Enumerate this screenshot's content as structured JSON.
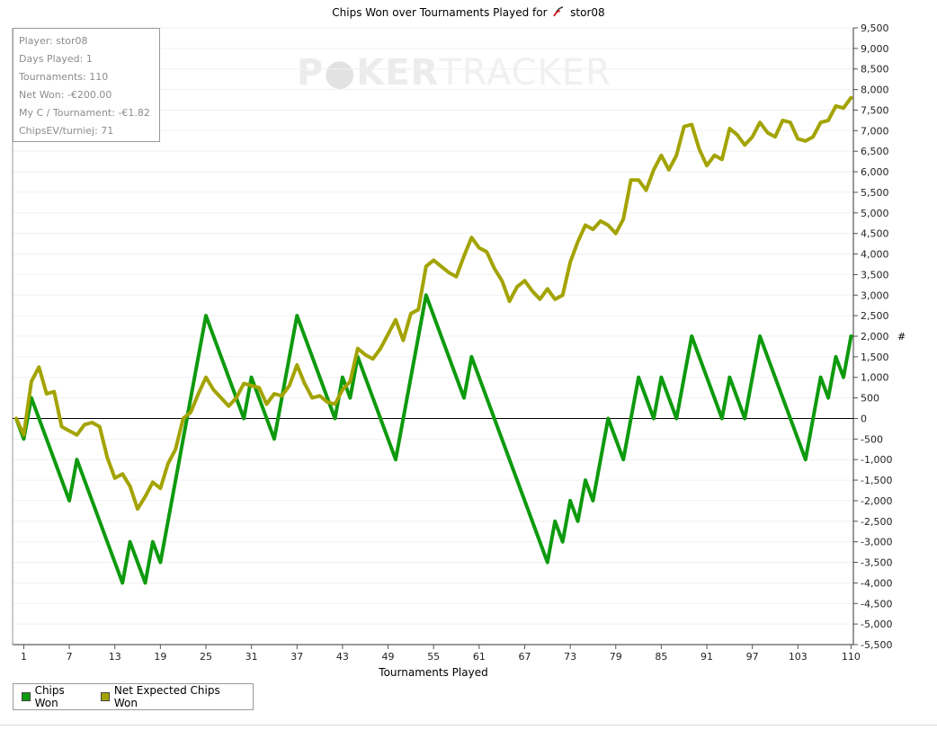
{
  "title": {
    "text": "Chips Won over Tournaments Played for",
    "player": "stor08",
    "logo_icon": "cherry-icon"
  },
  "stats": [
    "Player: stor08",
    "Days Played: 1",
    "Tournaments: 110",
    "Net Won: -€200.00",
    "My C / Tournament: -€1.82",
    "ChipsEV/turniej: 71"
  ],
  "watermark": {
    "part1": "P",
    "part2": "KER",
    "part3": "TRACKER"
  },
  "legend": [
    {
      "label": "Chips Won",
      "color": "#0e9a0e"
    },
    {
      "label": "Net Expected Chips Won",
      "color": "#a3a300"
    }
  ],
  "chart_data": {
    "type": "line",
    "title": "Chips Won over Tournaments Played for stor08",
    "xlabel": "Tournaments Played",
    "ylabel": "#",
    "xlim": [
      0,
      110
    ],
    "ylim": [
      -5500,
      9500
    ],
    "x_ticks": [
      1,
      7,
      13,
      19,
      25,
      31,
      37,
      43,
      49,
      55,
      61,
      67,
      73,
      79,
      85,
      91,
      97,
      103,
      110
    ],
    "y_ticks": [
      -5500,
      -5000,
      -4500,
      -4000,
      -3500,
      -3000,
      -2500,
      -2000,
      -1500,
      -1000,
      -500,
      0,
      500,
      1000,
      1500,
      2000,
      2500,
      3000,
      3500,
      4000,
      4500,
      5000,
      5500,
      6000,
      6500,
      7000,
      7500,
      8000,
      8500,
      9000,
      9500
    ],
    "grid": "horizontal",
    "legend_position": "bottom-left",
    "series": [
      {
        "name": "Chips Won",
        "color": "#0e9a0e",
        "points": [
          [
            0,
            0
          ],
          [
            1,
            -500
          ],
          [
            2,
            500
          ],
          [
            7,
            -2000
          ],
          [
            8,
            -1000
          ],
          [
            14,
            -4000
          ],
          [
            15,
            -3000
          ],
          [
            17,
            -4000
          ],
          [
            18,
            -3000
          ],
          [
            19,
            -3500
          ],
          [
            25,
            2500
          ],
          [
            30,
            0
          ],
          [
            31,
            1000
          ],
          [
            34,
            -500
          ],
          [
            37,
            2500
          ],
          [
            42,
            0
          ],
          [
            43,
            1000
          ],
          [
            44,
            500
          ],
          [
            45,
            1500
          ],
          [
            50,
            -1000
          ],
          [
            54,
            3000
          ],
          [
            59,
            500
          ],
          [
            60,
            1500
          ],
          [
            70,
            -3500
          ],
          [
            71,
            -2500
          ],
          [
            72,
            -3000
          ],
          [
            73,
            -2000
          ],
          [
            74,
            -2500
          ],
          [
            75,
            -1500
          ],
          [
            76,
            -2000
          ],
          [
            78,
            0
          ],
          [
            80,
            -1000
          ],
          [
            82,
            1000
          ],
          [
            84,
            0
          ],
          [
            85,
            1000
          ],
          [
            87,
            0
          ],
          [
            89,
            2000
          ],
          [
            93,
            0
          ],
          [
            94,
            1000
          ],
          [
            96,
            0
          ],
          [
            98,
            2000
          ],
          [
            104,
            -1000
          ],
          [
            106,
            1000
          ],
          [
            107,
            500
          ],
          [
            108,
            1500
          ],
          [
            109,
            1000
          ],
          [
            110,
            2000
          ]
        ]
      },
      {
        "name": "Net Expected Chips Won",
        "color": "#a3a300",
        "points": [
          [
            0,
            0
          ],
          [
            1,
            -400
          ],
          [
            2,
            900
          ],
          [
            3,
            1250
          ],
          [
            4,
            600
          ],
          [
            5,
            650
          ],
          [
            6,
            -200
          ],
          [
            7,
            -300
          ],
          [
            8,
            -400
          ],
          [
            9,
            -150
          ],
          [
            10,
            -100
          ],
          [
            11,
            -200
          ],
          [
            12,
            -950
          ],
          [
            13,
            -1450
          ],
          [
            14,
            -1350
          ],
          [
            15,
            -1650
          ],
          [
            16,
            -2200
          ],
          [
            17,
            -1900
          ],
          [
            18,
            -1550
          ],
          [
            19,
            -1700
          ],
          [
            20,
            -1100
          ],
          [
            21,
            -750
          ],
          [
            22,
            0
          ],
          [
            23,
            150
          ],
          [
            24,
            600
          ],
          [
            25,
            1000
          ],
          [
            26,
            700
          ],
          [
            27,
            500
          ],
          [
            28,
            300
          ],
          [
            29,
            500
          ],
          [
            30,
            850
          ],
          [
            31,
            800
          ],
          [
            32,
            750
          ],
          [
            33,
            350
          ],
          [
            34,
            600
          ],
          [
            35,
            550
          ],
          [
            36,
            800
          ],
          [
            37,
            1300
          ],
          [
            38,
            850
          ],
          [
            39,
            500
          ],
          [
            40,
            550
          ],
          [
            41,
            400
          ],
          [
            42,
            350
          ],
          [
            43,
            700
          ],
          [
            44,
            900
          ],
          [
            45,
            1700
          ],
          [
            46,
            1550
          ],
          [
            47,
            1450
          ],
          [
            48,
            1700
          ],
          [
            49,
            2050
          ],
          [
            50,
            2400
          ],
          [
            51,
            1900
          ],
          [
            52,
            2550
          ],
          [
            53,
            2650
          ],
          [
            54,
            3700
          ],
          [
            55,
            3850
          ],
          [
            56,
            3700
          ],
          [
            57,
            3550
          ],
          [
            58,
            3450
          ],
          [
            59,
            3950
          ],
          [
            60,
            4400
          ],
          [
            61,
            4150
          ],
          [
            62,
            4050
          ],
          [
            63,
            3650
          ],
          [
            64,
            3350
          ],
          [
            65,
            2850
          ],
          [
            66,
            3200
          ],
          [
            67,
            3350
          ],
          [
            68,
            3100
          ],
          [
            69,
            2900
          ],
          [
            70,
            3150
          ],
          [
            71,
            2900
          ],
          [
            72,
            3000
          ],
          [
            73,
            3800
          ],
          [
            74,
            4300
          ],
          [
            75,
            4700
          ],
          [
            76,
            4600
          ],
          [
            77,
            4800
          ],
          [
            78,
            4700
          ],
          [
            79,
            4500
          ],
          [
            80,
            4850
          ],
          [
            81,
            5800
          ],
          [
            82,
            5800
          ],
          [
            83,
            5550
          ],
          [
            84,
            6050
          ],
          [
            85,
            6400
          ],
          [
            86,
            6050
          ],
          [
            87,
            6400
          ],
          [
            88,
            7100
          ],
          [
            89,
            7150
          ],
          [
            90,
            6550
          ],
          [
            91,
            6150
          ],
          [
            92,
            6400
          ],
          [
            93,
            6300
          ],
          [
            94,
            7050
          ],
          [
            95,
            6900
          ],
          [
            96,
            6650
          ],
          [
            97,
            6850
          ],
          [
            98,
            7200
          ],
          [
            99,
            6950
          ],
          [
            100,
            6850
          ],
          [
            101,
            7250
          ],
          [
            102,
            7200
          ],
          [
            103,
            6800
          ],
          [
            104,
            6750
          ],
          [
            105,
            6850
          ],
          [
            106,
            7200
          ],
          [
            107,
            7250
          ],
          [
            108,
            7600
          ],
          [
            109,
            7550
          ],
          [
            110,
            7800
          ]
        ]
      }
    ]
  }
}
